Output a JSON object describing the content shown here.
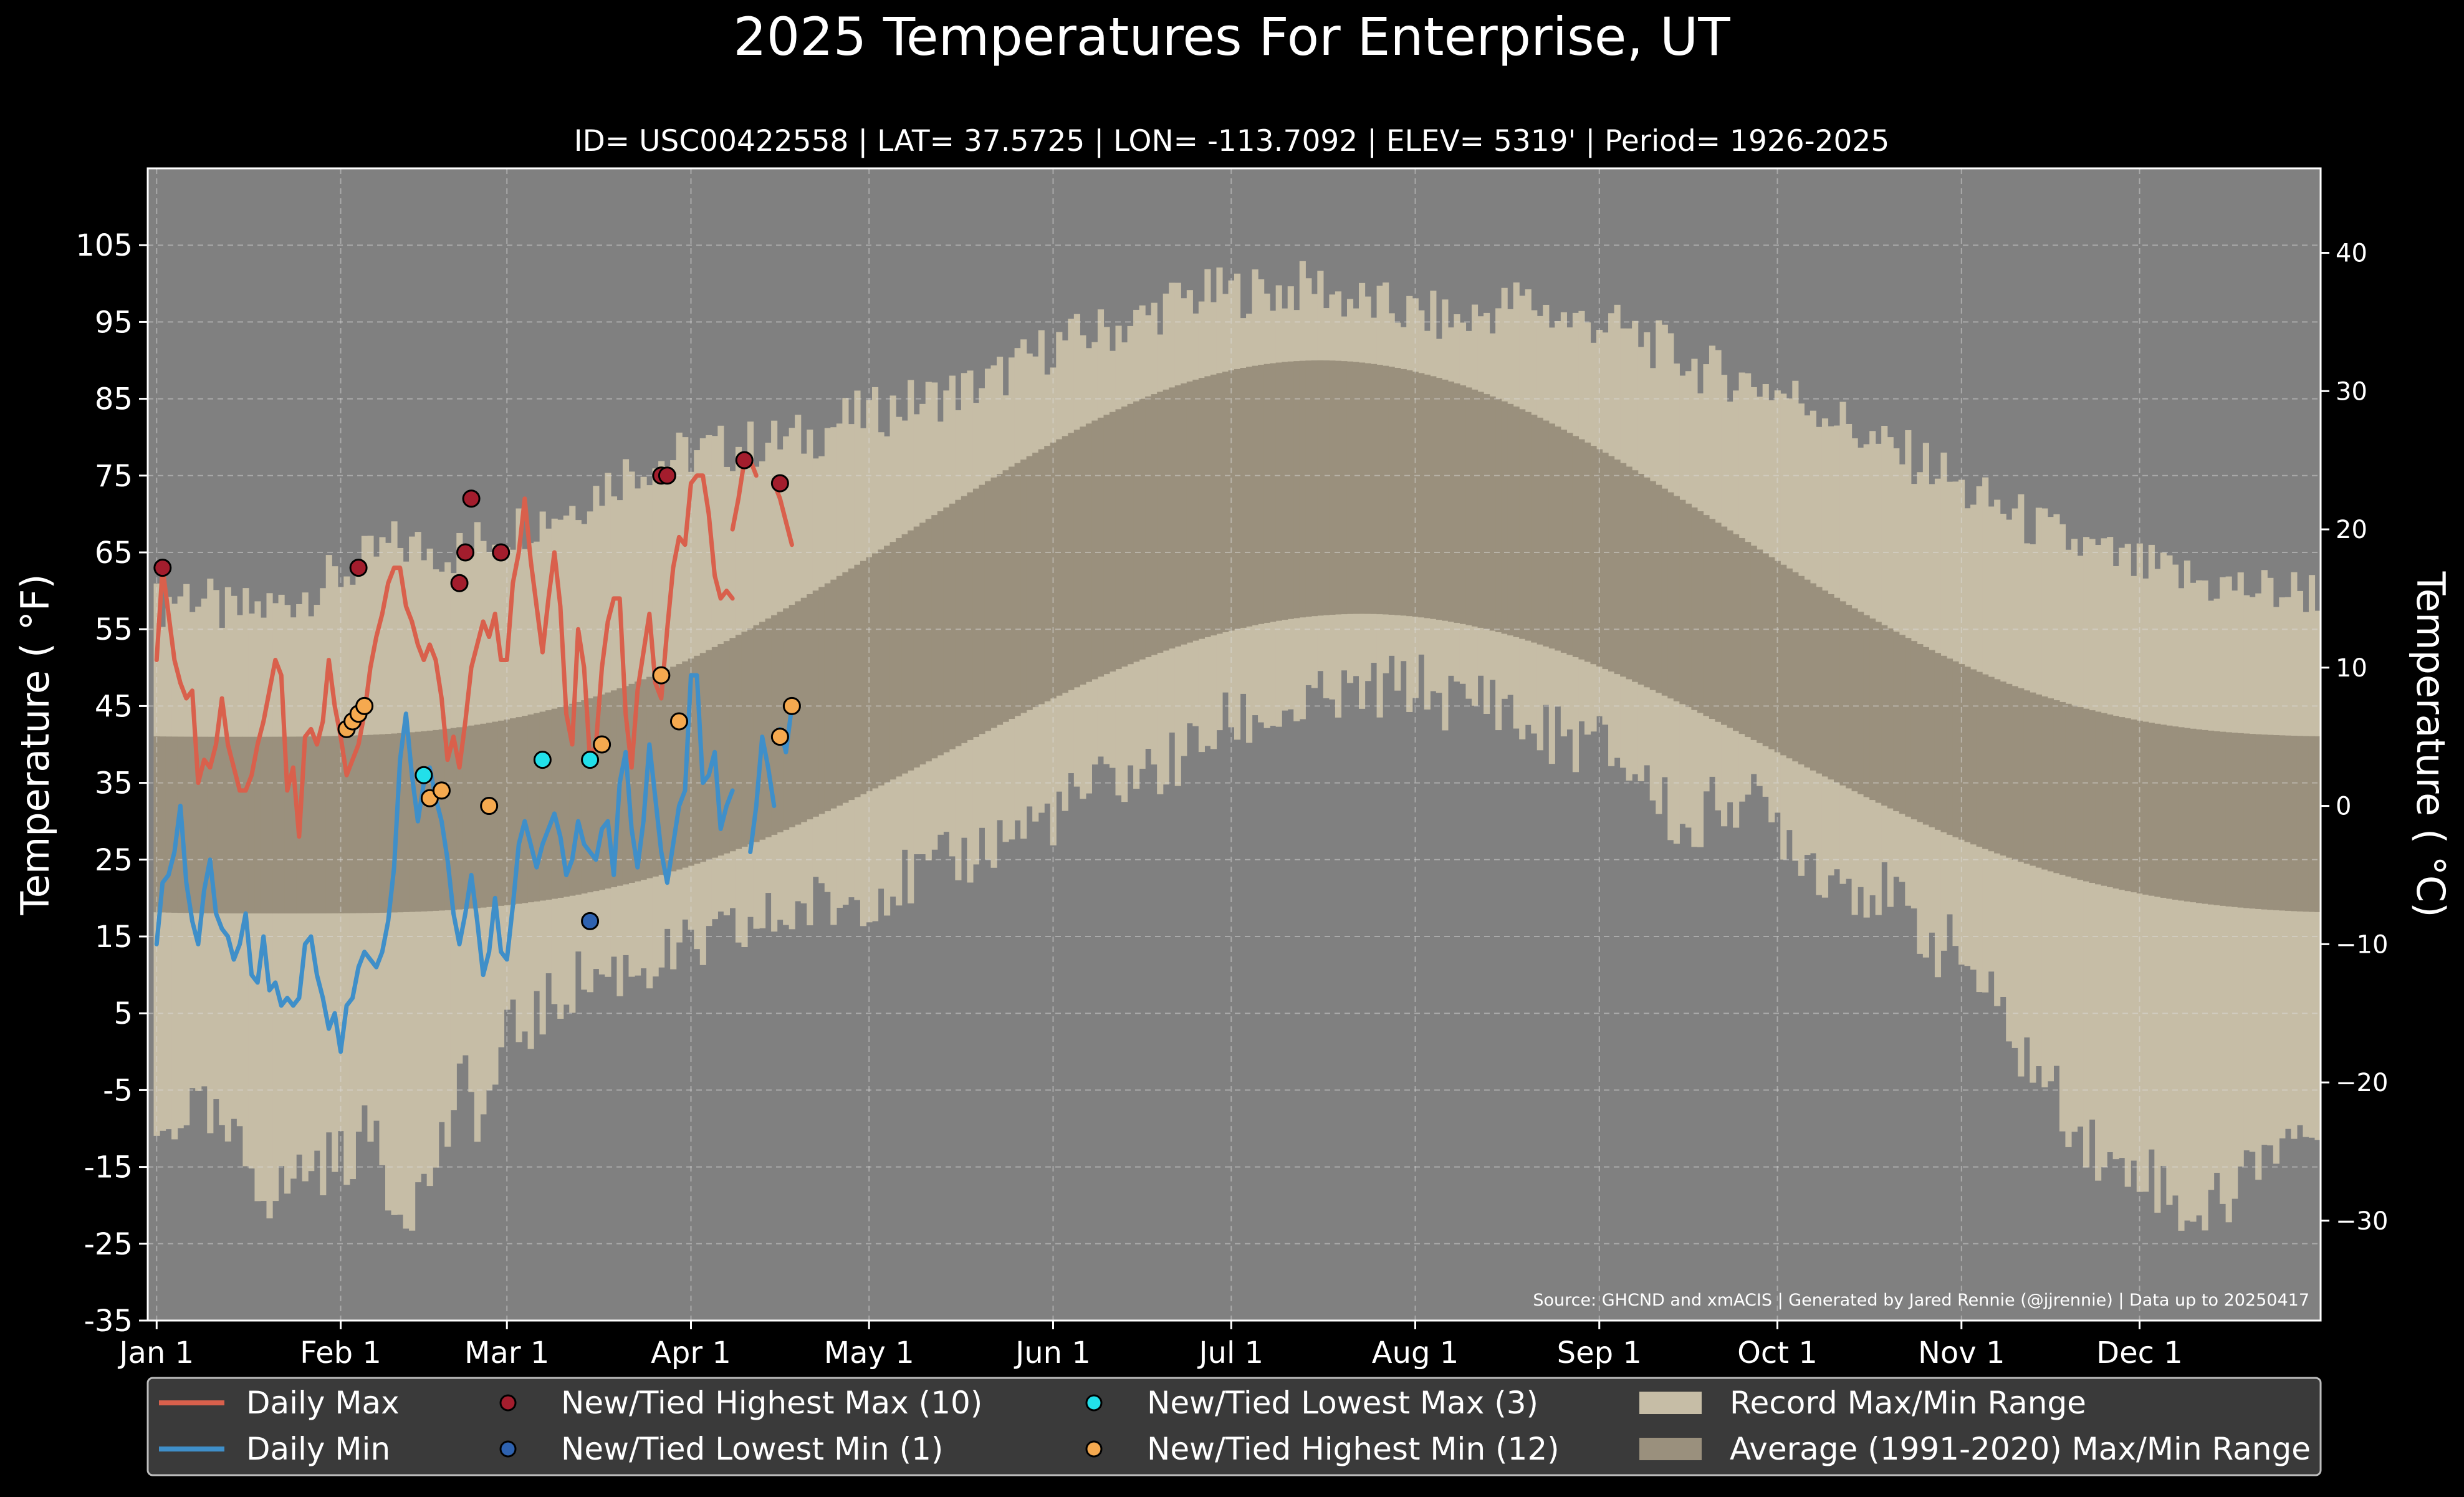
{
  "title": "2025 Temperatures For Enterprise, UT",
  "subtitle": "ID= USC00422558 | LAT= 37.5725 | LON= -113.7092 | ELEV= 5319' | Period= 1926-2025",
  "source": "Source: GHCND and xmACIS | Generated by Jared Rennie (@jjrennie) | Data up to 20250417",
  "colors": {
    "background": "#000000",
    "plot_bg": "#808080",
    "record_range": "#c6bda6",
    "normal_range": "#9a907d",
    "daily_max": "#d9604c",
    "daily_min": "#3f8fc9",
    "high_max": "#a31d2d",
    "low_min": "#2e62b0",
    "low_max": "#22e0ea",
    "high_min": "#f5a94f"
  },
  "chart_data": {
    "type": "line",
    "title": "2025 Temperatures For Enterprise, UT",
    "subtitle": "ID= USC00422558 | LAT= 37.5725 | LON= -113.7092 | ELEV= 5319' | Period= 1926-2025",
    "ylabel": "Temperature ( $^\\circ$F)",
    "ylabel_right": "Temperature ( $^\\circ$C)",
    "ylabel_left_text": "Temperature ( °F)",
    "ylabel_right_text": "Temperature ( °C)",
    "x_unit": "day of year",
    "xlim": [
      -1.5,
      364.5
    ],
    "ylim": [
      -35,
      115
    ],
    "grid": true,
    "legend_placement": "bottom",
    "x_ticks": [
      {
        "label": "Jan 1",
        "day": 0
      },
      {
        "label": "Feb 1",
        "day": 31
      },
      {
        "label": "Mar 1",
        "day": 59
      },
      {
        "label": "Apr 1",
        "day": 90
      },
      {
        "label": "May 1",
        "day": 120
      },
      {
        "label": "Jun 1",
        "day": 151
      },
      {
        "label": "Jul 1",
        "day": 181
      },
      {
        "label": "Aug 1",
        "day": 212
      },
      {
        "label": "Sep 1",
        "day": 243
      },
      {
        "label": "Oct 1",
        "day": 273
      },
      {
        "label": "Nov 1",
        "day": 304
      },
      {
        "label": "Dec 1",
        "day": 334
      }
    ],
    "y_ticks_f": [
      "105",
      "95",
      "85",
      "75",
      "65",
      "55",
      "45",
      "35",
      "25",
      "15",
      "5",
      "-5",
      "-15",
      "-25",
      "-35"
    ],
    "y_ticks_c": [
      "40",
      "30",
      "20",
      "10",
      "0",
      "−10",
      "−20",
      "−30"
    ],
    "record_max_knots": [
      [
        0,
        58
      ],
      [
        5,
        60
      ],
      [
        12,
        57
      ],
      [
        20,
        58
      ],
      [
        31,
        62
      ],
      [
        40,
        66
      ],
      [
        50,
        65
      ],
      [
        59,
        68
      ],
      [
        70,
        71
      ],
      [
        80,
        76
      ],
      [
        90,
        78
      ],
      [
        100,
        79
      ],
      [
        110,
        80
      ],
      [
        115,
        82
      ],
      [
        120,
        83
      ],
      [
        130,
        85
      ],
      [
        140,
        87
      ],
      [
        151,
        92
      ],
      [
        160,
        94
      ],
      [
        165,
        95
      ],
      [
        172,
        98
      ],
      [
        181,
        99
      ],
      [
        190,
        99
      ],
      [
        195,
        100
      ],
      [
        200,
        98
      ],
      [
        212,
        96
      ],
      [
        220,
        95
      ],
      [
        230,
        98
      ],
      [
        238,
        95
      ],
      [
        243,
        95
      ],
      [
        250,
        93
      ],
      [
        260,
        89
      ],
      [
        270,
        87
      ],
      [
        273,
        86
      ],
      [
        280,
        84
      ],
      [
        290,
        79
      ],
      [
        300,
        76
      ],
      [
        304,
        73
      ],
      [
        310,
        71
      ],
      [
        320,
        67
      ],
      [
        330,
        64
      ],
      [
        334,
        63
      ],
      [
        345,
        61
      ],
      [
        355,
        60
      ],
      [
        364,
        60
      ]
    ],
    "record_min_knots": [
      [
        0,
        -12
      ],
      [
        5,
        -7
      ],
      [
        10,
        -10
      ],
      [
        15,
        -14
      ],
      [
        20,
        -19
      ],
      [
        25,
        -15
      ],
      [
        31,
        -14
      ],
      [
        37,
        -10
      ],
      [
        40,
        -20
      ],
      [
        45,
        -18
      ],
      [
        52,
        -4
      ],
      [
        55,
        -9
      ],
      [
        59,
        2
      ],
      [
        65,
        5
      ],
      [
        70,
        9
      ],
      [
        75,
        10
      ],
      [
        80,
        11
      ],
      [
        90,
        13
      ],
      [
        100,
        16
      ],
      [
        110,
        19
      ],
      [
        115,
        19
      ],
      [
        120,
        21
      ],
      [
        130,
        23
      ],
      [
        140,
        27
      ],
      [
        151,
        31
      ],
      [
        160,
        35
      ],
      [
        170,
        37
      ],
      [
        181,
        43
      ],
      [
        190,
        44
      ],
      [
        200,
        46
      ],
      [
        212,
        48
      ],
      [
        220,
        45
      ],
      [
        225,
        47
      ],
      [
        230,
        42
      ],
      [
        243,
        40
      ],
      [
        250,
        36
      ],
      [
        258,
        28
      ],
      [
        265,
        34
      ],
      [
        273,
        30
      ],
      [
        280,
        24
      ],
      [
        290,
        21
      ],
      [
        300,
        14
      ],
      [
        304,
        13
      ],
      [
        310,
        5
      ],
      [
        316,
        -2
      ],
      [
        322,
        -8
      ],
      [
        330,
        -16
      ],
      [
        334,
        -14
      ],
      [
        340,
        -20
      ],
      [
        345,
        -21
      ],
      [
        350,
        -18
      ],
      [
        355,
        -12
      ],
      [
        364,
        -10
      ]
    ],
    "normal_max": {
      "winter": 41,
      "summer_peak": 90,
      "peak_day": 196
    },
    "normal_min": {
      "winter": 18,
      "summer_peak": 57,
      "peak_day": 203
    },
    "series": [
      {
        "name": "Daily Max",
        "start_day": 0,
        "values": [
          51,
          63,
          57,
          51,
          48,
          46,
          47,
          35,
          38,
          37,
          40,
          46,
          40,
          37,
          34,
          34,
          36,
          40,
          43,
          47,
          51,
          49,
          34,
          37,
          28,
          41,
          42,
          40,
          43,
          51,
          45,
          41
        ],
        "continue": [
          [
            32,
            36
          ],
          [
            33,
            38
          ],
          [
            34,
            40
          ],
          [
            35,
            44
          ],
          [
            36,
            50
          ],
          [
            37,
            54
          ],
          [
            38,
            57
          ],
          [
            39,
            61
          ],
          [
            40,
            63
          ],
          [
            41,
            63
          ],
          [
            42,
            58
          ],
          [
            43,
            56
          ],
          [
            44,
            53
          ],
          [
            45,
            51
          ],
          [
            46,
            53
          ],
          [
            47,
            51
          ],
          [
            48,
            46
          ],
          [
            49,
            38
          ],
          [
            50,
            41
          ],
          [
            51,
            37
          ],
          [
            52,
            43
          ],
          [
            53,
            50
          ],
          [
            54,
            53
          ],
          [
            55,
            56
          ],
          [
            56,
            54
          ],
          [
            57,
            57
          ],
          [
            58,
            51
          ],
          [
            59,
            51
          ],
          [
            60,
            61
          ],
          [
            61,
            65
          ],
          [
            62,
            72
          ],
          [
            63,
            64
          ],
          [
            64,
            58
          ],
          [
            65,
            52
          ],
          [
            66,
            59
          ],
          [
            67,
            65
          ],
          [
            68,
            58
          ],
          [
            69,
            44
          ],
          [
            70,
            40
          ],
          [
            71,
            55
          ],
          [
            72,
            50
          ],
          [
            73,
            38
          ],
          [
            74,
            40
          ],
          [
            75,
            50
          ],
          [
            76,
            56
          ],
          [
            77,
            59
          ],
          [
            78,
            59
          ],
          [
            79,
            44
          ],
          [
            80,
            37
          ],
          [
            81,
            47
          ],
          [
            82,
            52
          ],
          [
            83,
            57
          ],
          [
            84,
            48
          ],
          [
            85,
            46
          ],
          [
            86,
            55
          ],
          [
            87,
            63
          ],
          [
            88,
            67
          ],
          [
            89,
            66
          ],
          [
            90,
            74
          ],
          [
            91,
            75
          ],
          [
            92,
            75
          ],
          [
            93,
            70
          ],
          [
            94,
            62
          ],
          [
            95,
            59
          ],
          [
            96,
            60
          ],
          [
            97,
            59
          ]
        ],
        "segments_extra": [
          [
            [
              97,
              68
            ],
            [
              98,
              72
            ],
            [
              99,
              77
            ],
            [
              100,
              77
            ],
            [
              101,
              75
            ]
          ],
          [
            [
              104,
              74
            ],
            [
              105,
              72
            ],
            [
              106,
              69
            ],
            [
              107,
              66
            ]
          ]
        ]
      },
      {
        "name": "Daily Min",
        "start_day": 0,
        "values": [
          14,
          22,
          23,
          26,
          32,
          22,
          17,
          14,
          21,
          25,
          18,
          16,
          15,
          12,
          14,
          18,
          10,
          9,
          15,
          8,
          9,
          6,
          7,
          6,
          7,
          14,
          15,
          10,
          7,
          3,
          5,
          0
        ],
        "continue": [
          [
            32,
            6
          ],
          [
            33,
            7
          ],
          [
            34,
            11
          ],
          [
            35,
            13
          ],
          [
            36,
            12
          ],
          [
            37,
            11
          ],
          [
            38,
            13
          ],
          [
            39,
            17
          ],
          [
            40,
            24
          ],
          [
            41,
            38
          ],
          [
            42,
            44
          ],
          [
            43,
            36
          ],
          [
            44,
            30
          ],
          [
            45,
            35
          ],
          [
            46,
            37
          ],
          [
            47,
            33
          ],
          [
            48,
            30
          ],
          [
            49,
            25
          ],
          [
            50,
            18
          ],
          [
            51,
            14
          ],
          [
            52,
            18
          ],
          [
            53,
            23
          ],
          [
            54,
            17
          ],
          [
            55,
            10
          ],
          [
            56,
            13
          ],
          [
            57,
            20
          ],
          [
            58,
            13
          ],
          [
            59,
            12
          ],
          [
            60,
            19
          ],
          [
            61,
            27
          ],
          [
            62,
            30
          ],
          [
            63,
            27
          ],
          [
            64,
            24
          ],
          [
            65,
            27
          ],
          [
            66,
            29
          ],
          [
            67,
            31
          ],
          [
            68,
            28
          ],
          [
            69,
            23
          ],
          [
            70,
            25
          ],
          [
            71,
            30
          ],
          [
            72,
            27
          ],
          [
            73,
            26
          ],
          [
            74,
            25
          ],
          [
            75,
            29
          ],
          [
            76,
            30
          ],
          [
            77,
            23
          ],
          [
            78,
            35
          ],
          [
            79,
            39
          ],
          [
            80,
            29
          ],
          [
            81,
            24
          ],
          [
            82,
            30
          ],
          [
            83,
            40
          ],
          [
            84,
            33
          ],
          [
            85,
            26
          ],
          [
            86,
            22
          ],
          [
            87,
            27
          ],
          [
            88,
            32
          ],
          [
            89,
            34
          ],
          [
            90,
            49
          ],
          [
            91,
            49
          ],
          [
            92,
            35
          ],
          [
            93,
            36
          ],
          [
            94,
            39
          ],
          [
            95,
            29
          ],
          [
            96,
            32
          ],
          [
            97,
            34
          ]
        ],
        "segments_extra": [
          [
            [
              100,
              26
            ],
            [
              101,
              32
            ],
            [
              102,
              41
            ],
            [
              103,
              37
            ],
            [
              104,
              32
            ]
          ],
          [
            [
              105,
              42
            ],
            [
              106,
              39
            ],
            [
              107,
              45
            ]
          ]
        ]
      }
    ],
    "record_points": {
      "high_max": [
        [
          1,
          63
        ],
        [
          34,
          63
        ],
        [
          51,
          61
        ],
        [
          52,
          65
        ],
        [
          53,
          72
        ],
        [
          58,
          65
        ],
        [
          85,
          75
        ],
        [
          86,
          75
        ],
        [
          99,
          77
        ],
        [
          105,
          74
        ]
      ],
      "low_min": [
        [
          73,
          17
        ]
      ],
      "low_max": [
        [
          45,
          36
        ],
        [
          65,
          38
        ],
        [
          73,
          38
        ]
      ],
      "high_min": [
        [
          32,
          42
        ],
        [
          33,
          43
        ],
        [
          34,
          44
        ],
        [
          35,
          45
        ],
        [
          46,
          33
        ],
        [
          48,
          34
        ],
        [
          56,
          32
        ],
        [
          75,
          40
        ],
        [
          85,
          49
        ],
        [
          88,
          43
        ],
        [
          105,
          41
        ],
        [
          107,
          45
        ]
      ]
    },
    "legend": [
      {
        "label": "Daily Max",
        "kind": "line",
        "color": "#d9604c"
      },
      {
        "label": "Daily Min",
        "kind": "line",
        "color": "#3f8fc9"
      },
      {
        "label": "New/Tied Highest Max (10)",
        "kind": "marker",
        "color": "#a31d2d"
      },
      {
        "label": "New/Tied Lowest Min (1)",
        "kind": "marker",
        "color": "#2e62b0"
      },
      {
        "label": "New/Tied Lowest Max (3)",
        "kind": "marker",
        "color": "#22e0ea"
      },
      {
        "label": "New/Tied Highest Min (12)",
        "kind": "marker",
        "color": "#f5a94f"
      },
      {
        "label": "Record Max/Min Range",
        "kind": "patch",
        "color": "#c6bda6"
      },
      {
        "label": "Average (1991-2020) Max/Min Range",
        "kind": "patch",
        "color": "#9a907d"
      }
    ]
  }
}
